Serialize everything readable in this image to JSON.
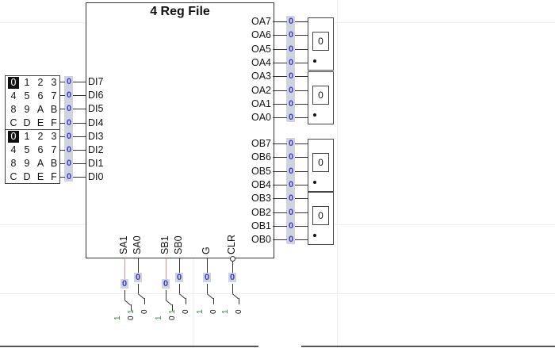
{
  "component": {
    "title": "4 Reg File"
  },
  "inputs": {
    "labels": [
      "DI7",
      "DI6",
      "DI5",
      "DI4",
      "DI3",
      "DI2",
      "DI1",
      "DI0"
    ],
    "values": [
      "0",
      "0",
      "0",
      "0",
      "0",
      "0",
      "0",
      "0"
    ]
  },
  "keypads": [
    {
      "keys": [
        "0",
        "1",
        "2",
        "3",
        "4",
        "5",
        "6",
        "7",
        "8",
        "9",
        "A",
        "B",
        "C",
        "D",
        "E",
        "F"
      ],
      "selected": "0"
    },
    {
      "keys": [
        "0",
        "1",
        "2",
        "3",
        "4",
        "5",
        "6",
        "7",
        "8",
        "9",
        "A",
        "B",
        "C",
        "D",
        "E",
        "F"
      ],
      "selected": "0"
    }
  ],
  "outputs_a": {
    "labels": [
      "OA7",
      "OA6",
      "OA5",
      "OA4",
      "OA3",
      "OA2",
      "OA1",
      "OA0"
    ],
    "values": [
      "0",
      "0",
      "0",
      "0",
      "0",
      "0",
      "0",
      "0"
    ]
  },
  "outputs_b": {
    "labels": [
      "OB7",
      "OB6",
      "OB5",
      "OB4",
      "OB3",
      "OB2",
      "OB1",
      "OB0"
    ],
    "values": [
      "0",
      "0",
      "0",
      "0",
      "0",
      "0",
      "0",
      "0"
    ]
  },
  "hex_displays": [
    "0",
    "0",
    "0",
    "0"
  ],
  "controls": [
    {
      "label": "SA1",
      "value": "0",
      "on": "1",
      "off": "0"
    },
    {
      "label": "SA0",
      "value": "0",
      "on": "1",
      "off": "0"
    },
    {
      "label": "SB1",
      "value": "0",
      "on": "1",
      "off": "0"
    },
    {
      "label": "SB0",
      "value": "0",
      "on": "1",
      "off": "0"
    },
    {
      "label": "G",
      "value": "0",
      "on": "1",
      "off": "0"
    },
    {
      "label": "CLR",
      "value": "0",
      "on": "1",
      "off": "0"
    }
  ],
  "colors": {
    "value": "#3a3ad0",
    "band": "#cfd3de",
    "switch_one": "#2a8a2a"
  }
}
